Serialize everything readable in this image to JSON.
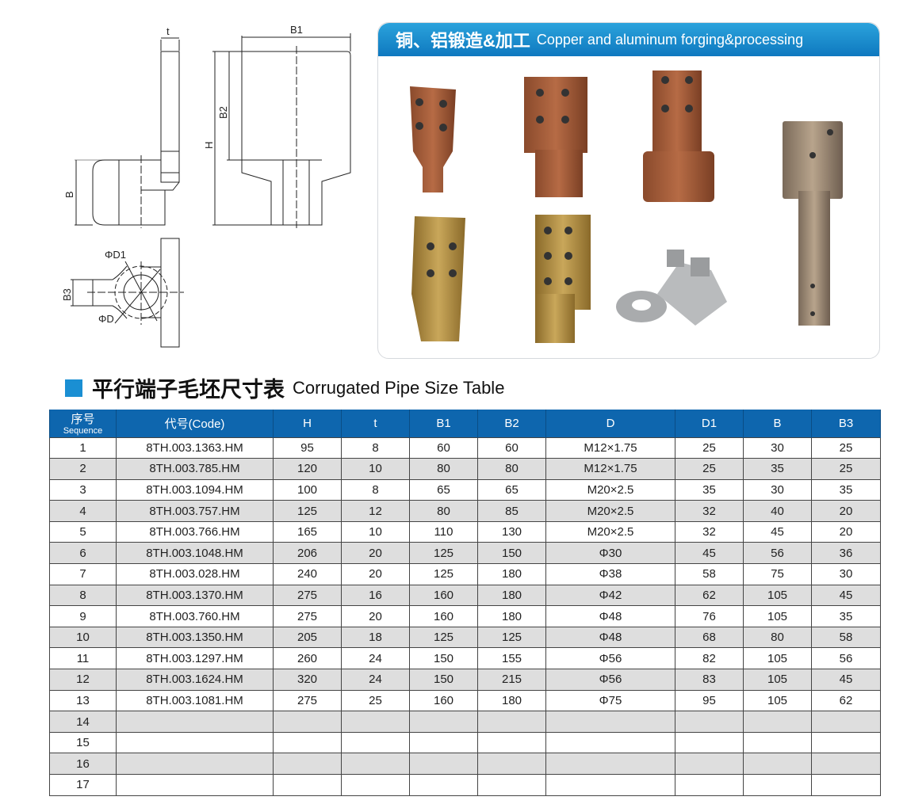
{
  "drawing": {
    "labels": {
      "t": "t",
      "b1": "B1",
      "b2": "B2",
      "h": "H",
      "b": "B",
      "d1": "ΦD1",
      "b3": "B3",
      "d": "ΦD"
    }
  },
  "panel": {
    "title_cn": "铜、铝锻造&加工",
    "title_en": "Copper and aluminum forging&processing"
  },
  "section": {
    "title_cn": "平行端子毛坯尺寸表",
    "title_en": "Corrugated Pipe Size Table",
    "accent": "#1a8fd3"
  },
  "table": {
    "headers": [
      {
        "cn": "序号",
        "en": "Sequence"
      },
      {
        "label": "代号(Code)"
      },
      {
        "label": "H"
      },
      {
        "label": "t"
      },
      {
        "label": "B1"
      },
      {
        "label": "B2"
      },
      {
        "label": "D"
      },
      {
        "label": "D1"
      },
      {
        "label": "B"
      },
      {
        "label": "B3"
      }
    ],
    "rows": [
      [
        "1",
        "8TH.003.1363.HM",
        "95",
        "8",
        "60",
        "60",
        "M12×1.75",
        "25",
        "30",
        "25"
      ],
      [
        "2",
        "8TH.003.785.HM",
        "120",
        "10",
        "80",
        "80",
        "M12×1.75",
        "25",
        "35",
        "25"
      ],
      [
        "3",
        "8TH.003.1094.HM",
        "100",
        "8",
        "65",
        "65",
        "M20×2.5",
        "35",
        "30",
        "35"
      ],
      [
        "4",
        "8TH.003.757.HM",
        "125",
        "12",
        "80",
        "85",
        "M20×2.5",
        "32",
        "40",
        "20"
      ],
      [
        "5",
        "8TH.003.766.HM",
        "165",
        "10",
        "110",
        "130",
        "M20×2.5",
        "32",
        "45",
        "20"
      ],
      [
        "6",
        "8TH.003.1048.HM",
        "206",
        "20",
        "125",
        "150",
        "Φ30",
        "45",
        "56",
        "36"
      ],
      [
        "7",
        "8TH.003.028.HM",
        "240",
        "20",
        "125",
        "180",
        "Φ38",
        "58",
        "75",
        "30"
      ],
      [
        "8",
        "8TH.003.1370.HM",
        "275",
        "16",
        "160",
        "180",
        "Φ42",
        "62",
        "105",
        "45"
      ],
      [
        "9",
        "8TH.003.760.HM",
        "275",
        "20",
        "160",
        "180",
        "Φ48",
        "76",
        "105",
        "35"
      ],
      [
        "10",
        "8TH.003.1350.HM",
        "205",
        "18",
        "125",
        "125",
        "Φ48",
        "68",
        "80",
        "58"
      ],
      [
        "11",
        "8TH.003.1297.HM",
        "260",
        "24",
        "150",
        "155",
        "Φ56",
        "82",
        "105",
        "56"
      ],
      [
        "12",
        "8TH.003.1624.HM",
        "320",
        "24",
        "150",
        "215",
        "Φ56",
        "83",
        "105",
        "45"
      ],
      [
        "13",
        "8TH.003.1081.HM",
        "275",
        "25",
        "160",
        "180",
        "Φ75",
        "95",
        "105",
        "62"
      ],
      [
        "14",
        "",
        "",
        "",
        "",
        "",
        "",
        "",
        "",
        ""
      ],
      [
        "15",
        "",
        "",
        "",
        "",
        "",
        "",
        "",
        "",
        ""
      ],
      [
        "16",
        "",
        "",
        "",
        "",
        "",
        "",
        "",
        "",
        ""
      ],
      [
        "17",
        "",
        "",
        "",
        "",
        "",
        "",
        "",
        "",
        ""
      ]
    ]
  }
}
